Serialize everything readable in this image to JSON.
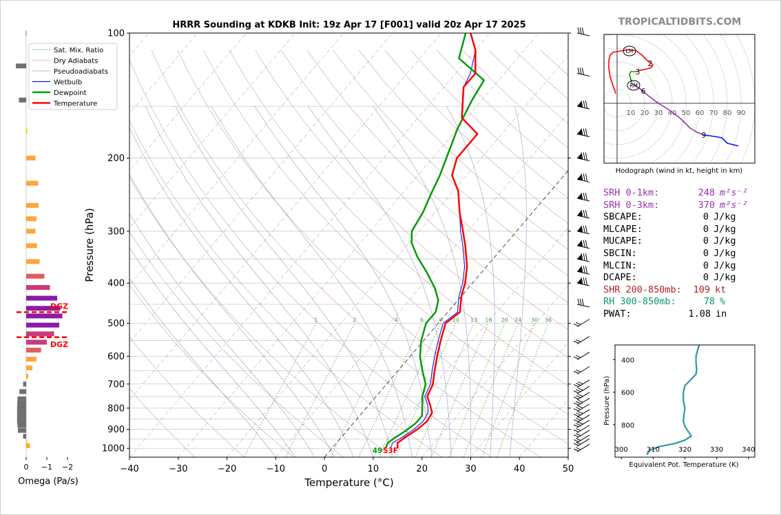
{
  "brand": "TROPICALTIDBITS.COM",
  "title": "HRRR Sounding at KDKB Init: 19z Apr 17 [F001] valid 20z Apr 17 2025",
  "colors": {
    "temperature": "#ff0000",
    "dewpoint": "#079a07",
    "wetbulb": "#1111ee",
    "dry_adiabat": "#cc8888",
    "moist_adiabat": "#8888cc",
    "mixing_ratio": "#3a9a3a",
    "isotherm": "#888888",
    "srh": "#9b2fae",
    "shr": "#b22222",
    "rh": "#079a70",
    "theta_e": "#2f94a8"
  },
  "skewt": {
    "type": "line",
    "xlabel": "Temperature (°C)",
    "ylabel": "Pressure (hPa)",
    "xlim": [
      -40,
      50
    ],
    "ylim": [
      1050,
      100
    ],
    "log_y": true,
    "x_ticks": [
      -40,
      -30,
      -20,
      -10,
      0,
      10,
      20,
      30,
      40,
      50
    ],
    "x_tick_labels": [
      "−40",
      "−30",
      "−20",
      "−10",
      "0",
      "10",
      "20",
      "30",
      "40",
      "50"
    ],
    "y_ticks": [
      100,
      200,
      300,
      400,
      500,
      600,
      700,
      800,
      900,
      1000
    ],
    "mixing_ratio_labels": [
      "1",
      "2",
      "4",
      "6",
      "8",
      "10",
      "13",
      "16",
      "20",
      "24",
      "30",
      "36"
    ],
    "surface_label": "49",
    "surface_label_2": "53F",
    "legend": {
      "placement": "top-left",
      "entries": [
        "Sat. Mix. Ratio",
        "Dry Adiabats",
        "Pseudoadiabats",
        "Wetbulb",
        "Dewpoint",
        "Temperature"
      ]
    },
    "series": [
      {
        "name": "Temperature",
        "points": [
          [
            13.5,
            1000
          ],
          [
            12.5,
            970
          ],
          [
            13,
            945
          ],
          [
            14.2,
            900
          ],
          [
            14.8,
            860
          ],
          [
            14.3,
            820
          ],
          [
            12.5,
            785
          ],
          [
            10.5,
            750
          ],
          [
            9.5,
            700
          ],
          [
            7.5,
            650
          ],
          [
            5.5,
            600
          ],
          [
            3.5,
            550
          ],
          [
            1.5,
            500
          ],
          [
            2.5,
            470
          ],
          [
            0,
            430
          ],
          [
            -1.5,
            400
          ],
          [
            -4,
            365
          ],
          [
            -8,
            325
          ],
          [
            -11,
            300
          ],
          [
            -15,
            270
          ],
          [
            -19,
            240
          ],
          [
            -23,
            220
          ],
          [
            -25,
            200
          ],
          [
            -25,
            175
          ],
          [
            -31,
            160
          ],
          [
            -36,
            135
          ],
          [
            -36,
            125
          ],
          [
            -40,
            110
          ],
          [
            -44,
            100
          ]
        ]
      },
      {
        "name": "Dewpoint",
        "points": [
          [
            11,
            1000
          ],
          [
            10.5,
            970
          ],
          [
            11,
            945
          ],
          [
            12,
            910
          ],
          [
            12.8,
            870
          ],
          [
            12.8,
            835
          ],
          [
            11.5,
            800
          ],
          [
            9.5,
            750
          ],
          [
            8,
            700
          ],
          [
            5,
            650
          ],
          [
            2,
            600
          ],
          [
            -0.5,
            550
          ],
          [
            -2.5,
            500
          ],
          [
            -2.5,
            470
          ],
          [
            -4,
            440
          ],
          [
            -7,
            410
          ],
          [
            -11.5,
            375
          ],
          [
            -16,
            345
          ],
          [
            -19.5,
            320
          ],
          [
            -21.5,
            300
          ],
          [
            -22.5,
            270
          ],
          [
            -24,
            245
          ],
          [
            -25.5,
            220
          ],
          [
            -29,
            180
          ],
          [
            -30,
            170
          ],
          [
            -32,
            145
          ],
          [
            -33,
            130
          ],
          [
            -42,
            115
          ],
          [
            -45,
            100
          ]
        ]
      },
      {
        "name": "Wetbulb",
        "points": [
          [
            12,
            1000
          ],
          [
            11.5,
            970
          ],
          [
            12.5,
            940
          ],
          [
            13.5,
            900
          ],
          [
            14,
            860
          ],
          [
            13.5,
            820
          ],
          [
            12,
            785
          ],
          [
            10,
            750
          ],
          [
            9,
            700
          ],
          [
            7,
            650
          ],
          [
            5,
            600
          ],
          [
            3,
            550
          ],
          [
            1,
            500
          ],
          [
            2,
            470
          ],
          [
            -0.5,
            430
          ],
          [
            -2,
            400
          ],
          [
            -4.5,
            365
          ],
          [
            -8.5,
            325
          ],
          [
            -11.5,
            300
          ],
          [
            -15,
            270
          ],
          [
            -19,
            240
          ],
          [
            -23,
            220
          ],
          [
            -25,
            200
          ],
          [
            -25,
            175
          ],
          [
            -31,
            160
          ],
          [
            -36,
            135
          ],
          [
            -37,
            125
          ],
          [
            -40,
            110
          ],
          [
            -44,
            100
          ]
        ]
      }
    ],
    "wind_barb_levels": [
      1000,
      970,
      950,
      925,
      900,
      875,
      850,
      825,
      800,
      775,
      750,
      725,
      700,
      650,
      600,
      550,
      500,
      450,
      400,
      375,
      350,
      325,
      300,
      275,
      250,
      225,
      200,
      175,
      150,
      125,
      100
    ]
  },
  "omega": {
    "type": "bar",
    "xlabel": "Omega (Pa/s)",
    "x_ticks": [
      0,
      -1,
      -2
    ],
    "x_tick_labels": [
      "0",
      "−1",
      "−2"
    ],
    "dgz_label": "DGZ",
    "dgz_top_hpa": 470,
    "dgz_bottom_hpa": 540,
    "bars": [
      {
        "p": 100,
        "w": 0.02
      },
      {
        "p": 120,
        "w": 0.5
      },
      {
        "p": 145,
        "w": 0.35
      },
      {
        "p": 172,
        "w": -0.06
      },
      {
        "p": 200,
        "w": -0.45
      },
      {
        "p": 230,
        "w": -0.58
      },
      {
        "p": 260,
        "w": -0.6
      },
      {
        "p": 280,
        "w": -0.5
      },
      {
        "p": 300,
        "w": -0.45
      },
      {
        "p": 325,
        "w": -0.52
      },
      {
        "p": 355,
        "w": -0.65
      },
      {
        "p": 385,
        "w": -0.88
      },
      {
        "p": 410,
        "w": -1.15
      },
      {
        "p": 435,
        "w": -1.5
      },
      {
        "p": 460,
        "w": -1.65
      },
      {
        "p": 480,
        "w": -1.75
      },
      {
        "p": 505,
        "w": -1.6
      },
      {
        "p": 530,
        "w": -1.35
      },
      {
        "p": 555,
        "w": -1.0
      },
      {
        "p": 580,
        "w": -0.72
      },
      {
        "p": 610,
        "w": -0.5
      },
      {
        "p": 640,
        "w": -0.3
      },
      {
        "p": 670,
        "w": -0.1
      },
      {
        "p": 700,
        "w": 0.15
      },
      {
        "p": 730,
        "w": 0.33
      },
      {
        "p": 760,
        "w": 0.42
      },
      {
        "p": 780,
        "w": 0.43
      },
      {
        "p": 800,
        "w": 0.44
      },
      {
        "p": 820,
        "w": 0.44
      },
      {
        "p": 840,
        "w": 0.44
      },
      {
        "p": 860,
        "w": 0.44
      },
      {
        "p": 880,
        "w": 0.42
      },
      {
        "p": 905,
        "w": 0.4
      },
      {
        "p": 935,
        "w": 0.15
      },
      {
        "p": 965,
        "w": -0.05
      },
      {
        "p": 985,
        "w": -0.18
      }
    ]
  },
  "hodograph": {
    "caption": "Hodograph (wind in kt, height in km)",
    "ring_labels": [
      "10",
      "20",
      "30",
      "40",
      "50",
      "60",
      "70",
      "80",
      "90"
    ],
    "height_labels": [
      {
        "text": "2",
        "u": 24,
        "v": 29
      },
      {
        "text": "3",
        "u": 15,
        "v": 23
      },
      {
        "text": "6",
        "u": 19,
        "v": 9
      },
      {
        "text": "9",
        "u": 63,
        "v": -23
      }
    ],
    "markers": [
      {
        "text": "LM",
        "u": 9,
        "v": 38
      },
      {
        "text": "RM",
        "u": 12,
        "v": 13
      }
    ],
    "segments": [
      {
        "color": "#ff0000",
        "points": [
          [
            -1,
            7
          ],
          [
            -3,
            13
          ],
          [
            -5,
            19
          ],
          [
            -6,
            25
          ],
          [
            -6,
            31
          ],
          [
            -5,
            35
          ],
          [
            -3,
            37
          ],
          [
            3,
            38
          ],
          [
            9,
            39
          ],
          [
            14,
            38
          ],
          [
            18,
            35
          ],
          [
            22,
            31
          ],
          [
            26,
            28
          ],
          [
            25,
            26
          ],
          [
            22,
            25
          ],
          [
            17,
            24
          ],
          [
            14,
            23
          ]
        ]
      },
      {
        "color": "#079a07",
        "points": [
          [
            14,
            23
          ],
          [
            10,
            23
          ],
          [
            9,
            21
          ],
          [
            10,
            17
          ],
          [
            11,
            14
          ]
        ]
      },
      {
        "color": "#9b2fae",
        "points": [
          [
            11,
            14
          ],
          [
            16,
            11
          ],
          [
            22,
            6
          ],
          [
            30,
            0
          ],
          [
            38,
            -5
          ],
          [
            46,
            -11
          ],
          [
            53,
            -18
          ],
          [
            58,
            -21
          ],
          [
            63,
            -23
          ]
        ]
      },
      {
        "color": "#1111ee",
        "points": [
          [
            63,
            -23
          ],
          [
            70,
            -24
          ],
          [
            76,
            -25
          ],
          [
            80,
            -29
          ],
          [
            88,
            -31
          ]
        ]
      }
    ]
  },
  "params": [
    {
      "label": "SRH 0-1km:",
      "value": "248",
      "unit": "m²s⁻²",
      "color": "#9b2fae"
    },
    {
      "label": "SRH 0-3km:",
      "value": "370",
      "unit": "m²s⁻²",
      "color": "#9b2fae"
    },
    {
      "label": "SBCAPE:",
      "value": "0",
      "unit": "J/kg",
      "color": "#000000"
    },
    {
      "label": "MLCAPE:",
      "value": "0",
      "unit": "J/kg",
      "color": "#000000"
    },
    {
      "label": "MUCAPE:",
      "value": "0",
      "unit": "J/kg",
      "color": "#000000"
    },
    {
      "label": "SBCIN:",
      "value": "0",
      "unit": "J/kg",
      "color": "#000000"
    },
    {
      "label": "MLCIN:",
      "value": "0",
      "unit": "J/kg",
      "color": "#000000"
    },
    {
      "label": "DCAPE:",
      "value": "0",
      "unit": "J/kg",
      "color": "#000000"
    },
    {
      "label": "SHR 200-850mb:",
      "value": "109",
      "unit": "kt",
      "color": "#b22222"
    },
    {
      "label": "RH 300-850mb:",
      "value": "78",
      "unit": "%",
      "color": "#079a70"
    },
    {
      "label": "PWAT:",
      "value": "1.08",
      "unit": "in",
      "color": "#000000"
    }
  ],
  "theta_e": {
    "type": "line",
    "xlabel": "Equivalent Pot. Temperature (K)",
    "ylabel": "Pressure (hPa)",
    "xlim": [
      298,
      342
    ],
    "ylim": [
      1000,
      310
    ],
    "x_ticks": [
      300,
      310,
      320,
      330,
      340
    ],
    "x_tick_labels": [
      "300",
      "310",
      "320",
      "330",
      "340"
    ],
    "y_ticks": [
      400,
      600,
      800
    ],
    "y_tick_labels": [
      "400",
      "600",
      "800"
    ],
    "points": [
      [
        308,
        985
      ],
      [
        309,
        955
      ],
      [
        312,
        935
      ],
      [
        317,
        915
      ],
      [
        320,
        895
      ],
      [
        322,
        870
      ],
      [
        321,
        840
      ],
      [
        320,
        810
      ],
      [
        319.5,
        780
      ],
      [
        319.7,
        740
      ],
      [
        320,
        700
      ],
      [
        319.5,
        650
      ],
      [
        319.5,
        600
      ],
      [
        320,
        560
      ],
      [
        322,
        520
      ],
      [
        323.5,
        490
      ],
      [
        323.7,
        460
      ],
      [
        323.5,
        420
      ],
      [
        323.5,
        380
      ],
      [
        324,
        340
      ],
      [
        324.5,
        310
      ]
    ]
  }
}
